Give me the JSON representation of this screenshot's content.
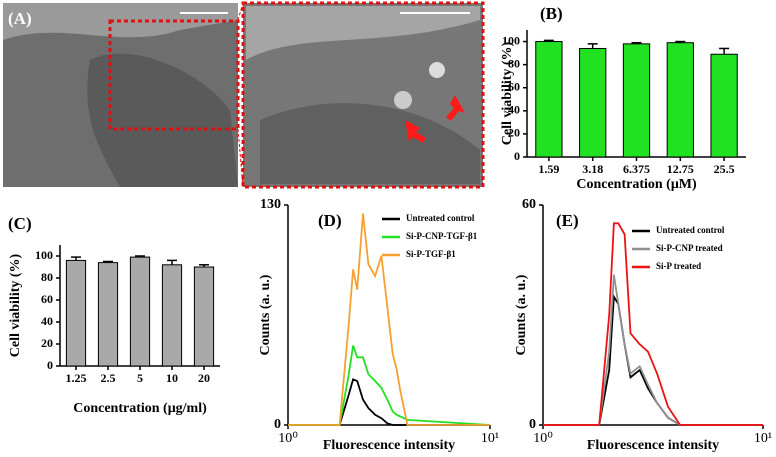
{
  "image_panel": {
    "label": "(A)"
  },
  "chart_data": [
    {
      "type": "bar",
      "panel_label": "(B)",
      "y_label": "Cell viability (%)",
      "x_label": "Concentration (μM)",
      "categories": [
        "1.59",
        "3.18",
        "6.375",
        "12.75",
        "25.5"
      ],
      "values": [
        100,
        94,
        98,
        99,
        89
      ],
      "errors": [
        1,
        4,
        1,
        1,
        5
      ],
      "color": "#22e022",
      "ylim": [
        0,
        110
      ],
      "yticks": [
        0,
        20,
        40,
        60,
        80,
        100
      ]
    },
    {
      "type": "bar",
      "panel_label": "(C)",
      "y_label": "Cell viability (%)",
      "x_label": "Concentration (μg/ml)",
      "categories": [
        "1.25",
        "2.5",
        "5",
        "10",
        "20"
      ],
      "values": [
        96,
        94,
        99,
        92,
        90
      ],
      "errors": [
        3,
        1,
        1,
        4,
        2
      ],
      "color": "#a9a9a9",
      "ylim": [
        0,
        110
      ],
      "yticks": [
        0,
        20,
        40,
        60,
        80,
        100
      ]
    },
    {
      "type": "line",
      "panel_label": "(D)",
      "y_label": "Counts (a. u.)",
      "x_label": "Fluorescence intensity",
      "log_x": true,
      "x": [
        1,
        1.8,
        2.0,
        2.1,
        2.2,
        2.35,
        2.5,
        2.7,
        2.9,
        3.1,
        3.3,
        3.45,
        3.6,
        3.9,
        10
      ],
      "series": [
        {
          "name": "Untreated control",
          "color": "#000000",
          "values": [
            0,
            0,
            18,
            27,
            26,
            15,
            10,
            6,
            4,
            1,
            0,
            0,
            0,
            0,
            0
          ]
        },
        {
          "name": "Si-P-CNP-TGF-β1",
          "color": "#22e022",
          "values": [
            0,
            0,
            30,
            47,
            40,
            40,
            30,
            26,
            22,
            15,
            8,
            6,
            5,
            3,
            0
          ]
        },
        {
          "name": "Si-P-TGF-β1",
          "color": "#f5a030",
          "values": [
            0,
            0,
            60,
            92,
            80,
            125,
            95,
            88,
            100,
            70,
            42,
            33,
            20,
            0,
            0
          ]
        }
      ],
      "xlim": [
        1,
        10
      ],
      "xticks": [
        {
          "value": 1,
          "label": "10⁰"
        },
        {
          "value": 10,
          "label": "10¹"
        }
      ],
      "ylim": [
        0,
        130
      ],
      "yticks": [
        0,
        130
      ],
      "legend": "upper right"
    },
    {
      "type": "line",
      "panel_label": "(E)",
      "y_label": "Counts (a. u.)",
      "x_label": "Fluorescence intensity",
      "log_x": true,
      "x": [
        1,
        1.8,
        2.0,
        2.1,
        2.2,
        2.35,
        2.5,
        2.75,
        3.0,
        3.3,
        3.7,
        4.2,
        10
      ],
      "series": [
        {
          "name": "Untreated control",
          "color": "#000000",
          "values": [
            0,
            0,
            15,
            35,
            33,
            22,
            13,
            15,
            10,
            6,
            2,
            0,
            0
          ]
        },
        {
          "name": "Si-P-CNP treated",
          "color": "#909090",
          "values": [
            0,
            0,
            20,
            41,
            33,
            22,
            14,
            16,
            11,
            6,
            2,
            0,
            0
          ]
        },
        {
          "name": "Si-P treated",
          "color": "#ee1111",
          "values": [
            0,
            0,
            30,
            55,
            55,
            52,
            25,
            22,
            20,
            14,
            5,
            0,
            0
          ]
        }
      ],
      "xlim": [
        1,
        10
      ],
      "xticks": [
        {
          "value": 1,
          "label": "10⁰"
        },
        {
          "value": 10,
          "label": "10¹"
        }
      ],
      "ylim": [
        0,
        60
      ],
      "yticks": [
        0,
        60
      ],
      "legend": "upper right"
    }
  ]
}
